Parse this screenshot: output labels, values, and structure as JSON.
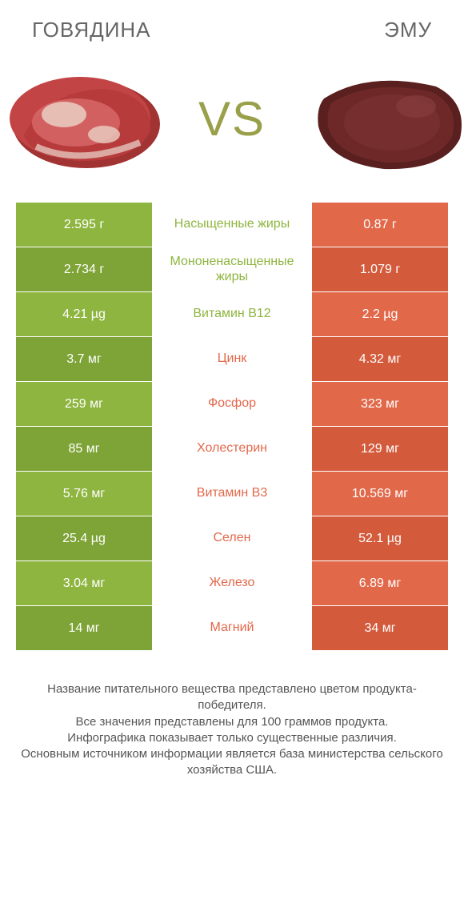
{
  "colors": {
    "green": "#8eb53f",
    "green_dark": "#7ea336",
    "orange": "#e2684a",
    "orange_dark": "#d45a3c",
    "mid_green_text": "#8eb53f",
    "mid_orange_text": "#e2684a",
    "vs_text": "#9aa04a",
    "title_text": "#666666",
    "left_loser": "#e9e9e9",
    "right_loser": "#e9e9e9"
  },
  "left_title": "ГОВЯДИНА",
  "right_title": "ЭМУ",
  "vs": "VS",
  "rows": [
    {
      "left": "2.595 г",
      "mid": "Насыщенные жиры",
      "right": "0.87 г",
      "winner": "left"
    },
    {
      "left": "2.734 г",
      "mid": "Мононенасыщенные жиры",
      "right": "1.079 г",
      "winner": "left"
    },
    {
      "left": "4.21 µg",
      "mid": "Витамин B12",
      "right": "2.2 µg",
      "winner": "left"
    },
    {
      "left": "3.7 мг",
      "mid": "Цинк",
      "right": "4.32 мг",
      "winner": "right"
    },
    {
      "left": "259 мг",
      "mid": "Фосфор",
      "right": "323 мг",
      "winner": "right"
    },
    {
      "left": "85 мг",
      "mid": "Холестерин",
      "right": "129 мг",
      "winner": "right"
    },
    {
      "left": "5.76 мг",
      "mid": "Витамин B3",
      "right": "10.569 мг",
      "winner": "right"
    },
    {
      "left": "25.4 µg",
      "mid": "Селен",
      "right": "52.1 µg",
      "winner": "right"
    },
    {
      "left": "3.04 мг",
      "mid": "Железо",
      "right": "6.89 мг",
      "winner": "right"
    },
    {
      "left": "14 мг",
      "mid": "Магний",
      "right": "34 мг",
      "winner": "right"
    }
  ],
  "footer_lines": [
    "Название питательного вещества представлено цветом продукта-победителя.",
    "Все значения представлены для 100 граммов продукта.",
    "Инфографика показывает только существенные различия.",
    "Основным источником информации является база министерства сельского хозяйства США."
  ]
}
